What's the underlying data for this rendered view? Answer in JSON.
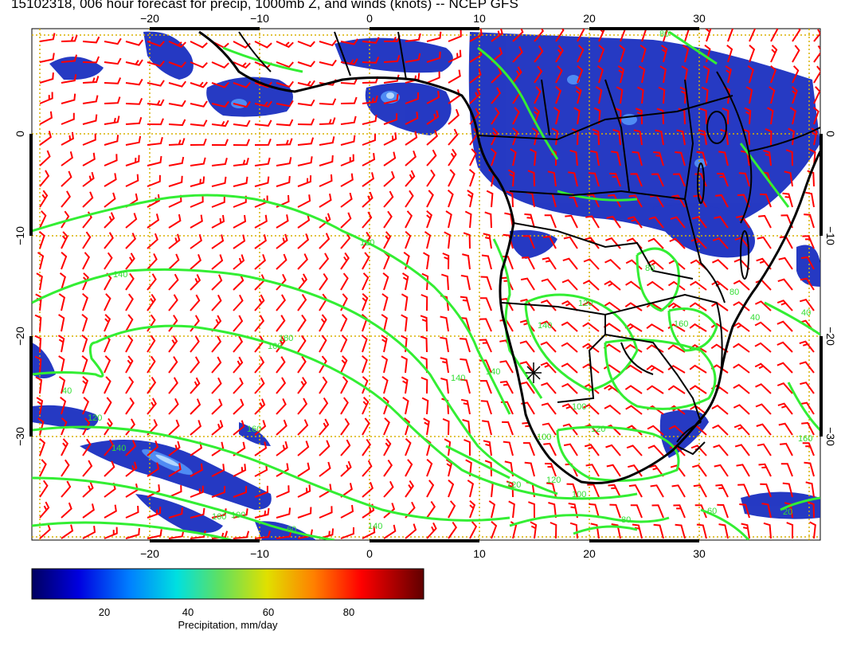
{
  "title": "15102318, 006 hour forecast for precip, 1000mb Z, and winds (knots) -- NCEP GFS",
  "axes": {
    "lon_ticks": [
      "−20",
      "−10",
      "0",
      "10",
      "20",
      "30"
    ],
    "lat_ticks": [
      "0",
      "−10",
      "−20",
      "−30"
    ]
  },
  "colorbar": {
    "label": "Precipitation, mm/day",
    "ticks": [
      "20",
      "40",
      "60",
      "80"
    ],
    "colors": [
      "#00007a",
      "#0000e0",
      "#0090ff",
      "#00e0e0",
      "#70e070",
      "#e0e000",
      "#ff8000",
      "#ff0000",
      "#a00000",
      "#600000"
    ]
  },
  "contour_labels": [
    "120",
    "140",
    "160",
    "140",
    "160",
    "140",
    "160",
    "120",
    "100",
    "40",
    "80",
    "60",
    "80",
    "120",
    "160",
    "140",
    "120",
    "100",
    "40",
    "100",
    "80",
    "160",
    "140",
    "120",
    "100",
    "60",
    "40",
    "20",
    "80",
    "140",
    "120",
    "160"
  ],
  "colors": {
    "precip_main": "#1a2fc0",
    "wind_barb": "#ff0000",
    "contour": "#33ee33",
    "grid": "#d8b000",
    "coast": "#000000"
  }
}
